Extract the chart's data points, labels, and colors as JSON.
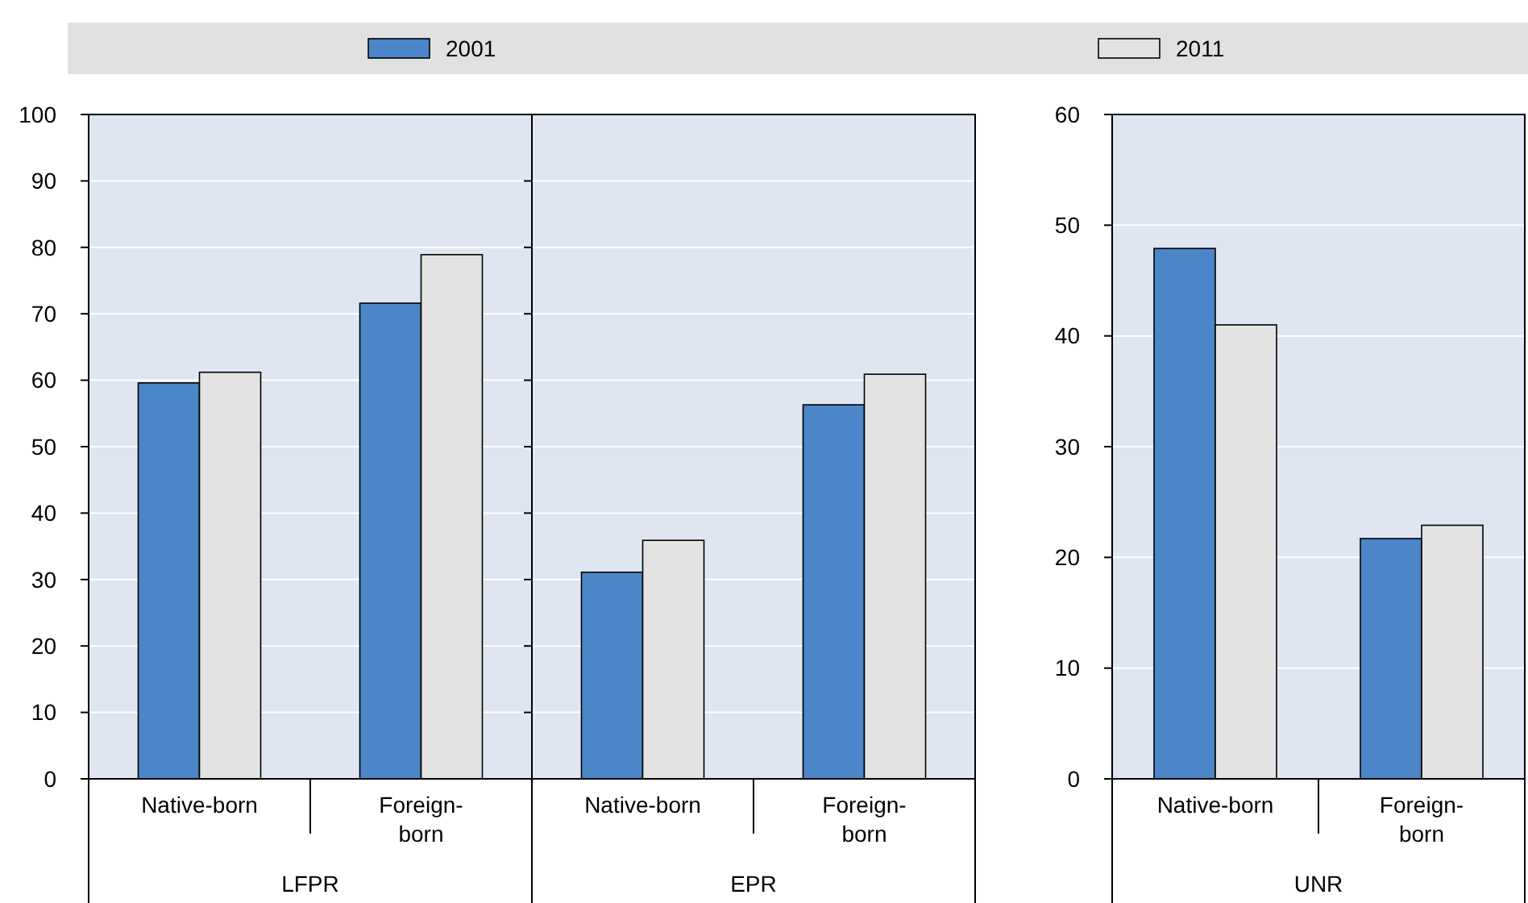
{
  "chart_data": [
    {
      "type": "bar",
      "xlabel": "LFPR",
      "categories": [
        "Native-born",
        "Foreign-born"
      ],
      "series": [
        {
          "name": "2001",
          "color": "#4a86c8",
          "values": [
            59.6,
            71.6
          ]
        },
        {
          "name": "2011",
          "color": "#e3e3e3",
          "values": [
            61.2,
            78.9
          ]
        }
      ],
      "ylim": [
        0,
        100
      ],
      "yticks": [
        0,
        10,
        20,
        30,
        40,
        50,
        60,
        70,
        80,
        90,
        100
      ],
      "grid": "y",
      "legend": "top"
    },
    {
      "type": "bar",
      "xlabel": "EPR",
      "categories": [
        "Native-born",
        "Foreign-born"
      ],
      "series": [
        {
          "color": "#4a86c8",
          "values": [
            31.1,
            56.3
          ]
        },
        {
          "color": "#e3e3e3",
          "values": [
            35.9,
            60.9
          ]
        }
      ],
      "ylim": [
        0,
        100
      ],
      "yticks": [
        0,
        10,
        20,
        30,
        40,
        50,
        60,
        70,
        80,
        90,
        100
      ],
      "grid": "y",
      "tick_labels": "x"
    },
    {
      "type": "bar",
      "xlabel": "UNR",
      "categories": [
        "Native-born",
        "Foreign-born"
      ],
      "series": [
        {
          "color": "#4a86c8",
          "values": [
            47.9,
            21.7
          ]
        },
        {
          "color": "#e3e3e3",
          "values": [
            41.0,
            22.9
          ]
        }
      ],
      "ylim": [
        0,
        60
      ],
      "yticks": [
        0,
        10,
        20,
        30,
        40,
        50,
        60
      ],
      "grid": "y"
    }
  ]
}
